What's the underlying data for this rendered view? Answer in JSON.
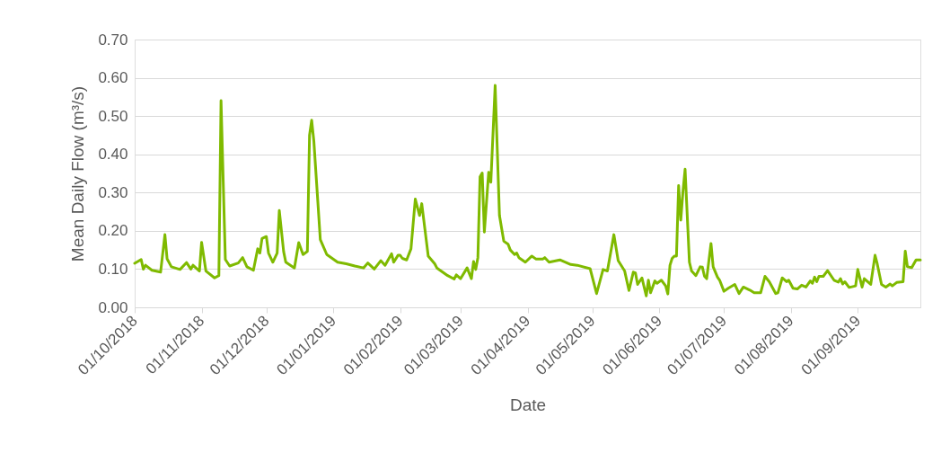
{
  "chart_data": {
    "type": "line",
    "xlabel": "Date",
    "ylabel": "Mean Daily Flow (m³/s)",
    "grid": "y",
    "legend": false,
    "marker": "none",
    "line_style": "solid",
    "xlim": [
      "2018-10-01",
      "2019-09-30"
    ],
    "xticks": [
      {
        "value": "2018-10-01",
        "label": "01/10/2018"
      },
      {
        "value": "2018-11-01",
        "label": "01/11/2018"
      },
      {
        "value": "2018-12-01",
        "label": "01/12/2018"
      },
      {
        "value": "2019-01-01",
        "label": "01/01/2019"
      },
      {
        "value": "2019-02-01",
        "label": "01/02/2019"
      },
      {
        "value": "2019-03-01",
        "label": "01/03/2019"
      },
      {
        "value": "2019-04-01",
        "label": "01/04/2019"
      },
      {
        "value": "2019-05-01",
        "label": "01/05/2019"
      },
      {
        "value": "2019-06-01",
        "label": "01/06/2019"
      },
      {
        "value": "2019-07-01",
        "label": "01/07/2019"
      },
      {
        "value": "2019-08-01",
        "label": "01/08/2019"
      },
      {
        "value": "2019-09-01",
        "label": "01/09/2019"
      }
    ],
    "ylim": [
      0,
      0.7
    ],
    "yticks": [
      {
        "value": 0,
        "label": "0.00"
      },
      {
        "value": 0.1,
        "label": "0.10"
      },
      {
        "value": 0.2,
        "label": "0.20"
      },
      {
        "value": 0.3,
        "label": "0.30"
      },
      {
        "value": 0.4,
        "label": "0.40"
      },
      {
        "value": 0.5,
        "label": "0.50"
      },
      {
        "value": 0.6,
        "label": "0.60"
      },
      {
        "value": 0.7,
        "label": "0.70"
      }
    ],
    "series": [
      {
        "color": "#7fba00",
        "x": [
          "2018-10-01",
          "2018-10-04",
          "2018-10-05",
          "2018-10-06",
          "2018-10-09",
          "2018-10-13",
          "2018-10-15",
          "2018-10-16",
          "2018-10-18",
          "2018-10-22",
          "2018-10-25",
          "2018-10-27",
          "2018-10-28",
          "2018-10-31",
          "2018-11-01",
          "2018-11-03",
          "2018-11-07",
          "2018-11-09",
          "2018-11-10",
          "2018-11-12",
          "2018-11-14",
          "2018-11-18",
          "2018-11-20",
          "2018-11-22",
          "2018-11-25",
          "2018-11-27",
          "2018-11-28",
          "2018-11-29",
          "2018-12-01",
          "2018-12-02",
          "2018-12-04",
          "2018-12-06",
          "2018-12-07",
          "2018-12-09",
          "2018-12-10",
          "2018-12-14",
          "2018-12-16",
          "2018-12-18",
          "2018-12-20",
          "2018-12-21",
          "2018-12-22",
          "2018-12-23",
          "2018-12-26",
          "2018-12-29",
          "2019-01-03",
          "2019-01-07",
          "2019-01-11",
          "2019-01-15",
          "2019-01-17",
          "2019-01-20",
          "2019-01-23",
          "2019-01-25",
          "2019-01-28",
          "2019-01-29",
          "2019-01-31",
          "2019-02-01",
          "2019-02-02",
          "2019-02-04",
          "2019-02-06",
          "2019-02-08",
          "2019-02-10",
          "2019-02-11",
          "2019-02-14",
          "2019-02-17",
          "2019-02-18",
          "2019-02-23",
          "2019-02-26",
          "2019-02-27",
          "2019-03-01",
          "2019-03-04",
          "2019-03-06",
          "2019-03-07",
          "2019-03-08",
          "2019-03-09",
          "2019-03-10",
          "2019-03-11",
          "2019-03-12",
          "2019-03-14",
          "2019-03-15",
          "2019-03-17",
          "2019-03-19",
          "2019-03-21",
          "2019-03-23",
          "2019-03-24",
          "2019-03-26",
          "2019-03-27",
          "2019-03-28",
          "2019-03-31",
          "2019-04-03",
          "2019-04-05",
          "2019-04-08",
          "2019-04-09",
          "2019-04-11",
          "2019-04-16",
          "2019-04-21",
          "2019-04-24",
          "2019-04-30",
          "2019-05-03",
          "2019-05-06",
          "2019-05-08",
          "2019-05-11",
          "2019-05-13",
          "2019-05-16",
          "2019-05-18",
          "2019-05-20",
          "2019-05-21",
          "2019-05-22",
          "2019-05-24",
          "2019-05-26",
          "2019-05-27",
          "2019-05-28",
          "2019-05-30",
          "2019-05-31",
          "2019-06-02",
          "2019-06-04",
          "2019-06-05",
          "2019-06-06",
          "2019-06-07",
          "2019-06-08",
          "2019-06-09",
          "2019-06-10",
          "2019-06-11",
          "2019-06-12",
          "2019-06-13",
          "2019-06-15",
          "2019-06-16",
          "2019-06-18",
          "2019-06-20",
          "2019-06-21",
          "2019-06-22",
          "2019-06-23",
          "2019-06-25",
          "2019-06-26",
          "2019-06-28",
          "2019-06-29",
          "2019-07-01",
          "2019-07-03",
          "2019-07-06",
          "2019-07-08",
          "2019-07-10",
          "2019-07-13",
          "2019-07-15",
          "2019-07-18",
          "2019-07-20",
          "2019-07-22",
          "2019-07-25",
          "2019-07-26",
          "2019-07-28",
          "2019-07-30",
          "2019-07-31",
          "2019-08-02",
          "2019-08-04",
          "2019-08-06",
          "2019-08-08",
          "2019-08-10",
          "2019-08-11",
          "2019-08-12",
          "2019-08-13",
          "2019-08-14",
          "2019-08-16",
          "2019-08-18",
          "2019-08-21",
          "2019-08-23",
          "2019-08-24",
          "2019-08-25",
          "2019-08-26",
          "2019-08-28",
          "2019-08-31",
          "2019-09-01",
          "2019-09-03",
          "2019-09-04",
          "2019-09-07",
          "2019-09-09",
          "2019-09-10",
          "2019-09-12",
          "2019-09-14",
          "2019-09-16",
          "2019-09-17",
          "2019-09-19",
          "2019-09-22",
          "2019-09-23",
          "2019-09-24",
          "2019-09-26",
          "2019-09-28",
          "2019-09-30"
        ],
        "values": [
          0.115,
          0.125,
          0.1,
          0.11,
          0.097,
          0.092,
          0.19,
          0.127,
          0.106,
          0.099,
          0.117,
          0.1,
          0.11,
          0.095,
          0.17,
          0.095,
          0.077,
          0.083,
          0.54,
          0.125,
          0.108,
          0.116,
          0.13,
          0.106,
          0.097,
          0.153,
          0.142,
          0.18,
          0.185,
          0.142,
          0.118,
          0.142,
          0.253,
          0.146,
          0.118,
          0.103,
          0.169,
          0.138,
          0.146,
          0.45,
          0.489,
          0.435,
          0.177,
          0.138,
          0.118,
          0.114,
          0.108,
          0.103,
          0.116,
          0.1,
          0.122,
          0.11,
          0.14,
          0.118,
          0.136,
          0.136,
          0.128,
          0.124,
          0.153,
          0.283,
          0.24,
          0.271,
          0.134,
          0.114,
          0.103,
          0.083,
          0.074,
          0.085,
          0.075,
          0.103,
          0.075,
          0.12,
          0.099,
          0.13,
          0.341,
          0.351,
          0.197,
          0.353,
          0.327,
          0.58,
          0.24,
          0.173,
          0.165,
          0.15,
          0.138,
          0.142,
          0.13,
          0.118,
          0.134,
          0.126,
          0.126,
          0.13,
          0.118,
          0.124,
          0.112,
          0.11,
          0.101,
          0.036,
          0.099,
          0.095,
          0.19,
          0.122,
          0.095,
          0.044,
          0.092,
          0.09,
          0.06,
          0.077,
          0.03,
          0.071,
          0.038,
          0.069,
          0.063,
          0.071,
          0.056,
          0.035,
          0.11,
          0.128,
          0.134,
          0.134,
          0.318,
          0.228,
          0.302,
          0.361,
          0.118,
          0.095,
          0.083,
          0.106,
          0.105,
          0.081,
          0.075,
          0.167,
          0.106,
          0.079,
          0.071,
          0.042,
          0.05,
          0.06,
          0.036,
          0.053,
          0.045,
          0.038,
          0.038,
          0.081,
          0.067,
          0.036,
          0.038,
          0.077,
          0.067,
          0.071,
          0.05,
          0.048,
          0.058,
          0.053,
          0.069,
          0.063,
          0.079,
          0.067,
          0.081,
          0.081,
          0.096,
          0.071,
          0.066,
          0.075,
          0.061,
          0.067,
          0.052,
          0.056,
          0.099,
          0.053,
          0.075,
          0.06,
          0.136,
          0.114,
          0.06,
          0.053,
          0.061,
          0.056,
          0.065,
          0.067,
          0.147,
          0.106,
          0.104,
          0.124,
          0.124
        ]
      }
    ]
  }
}
